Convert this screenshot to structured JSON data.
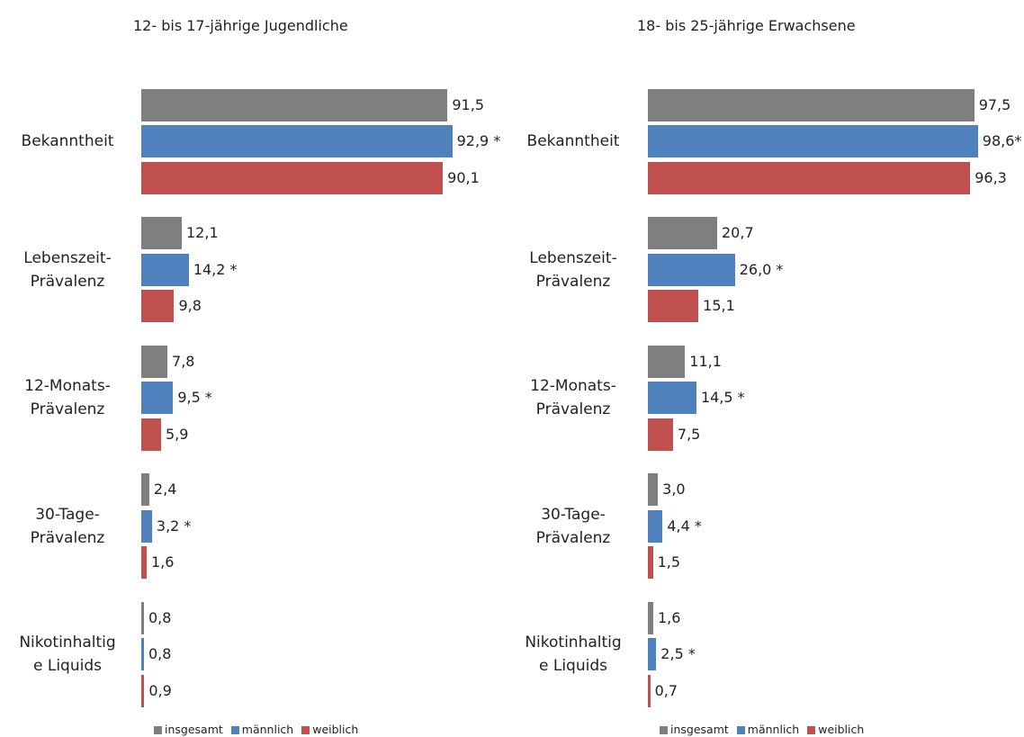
{
  "chart_data": [
    {
      "type": "bar",
      "orientation": "horizontal",
      "title": "12- bis 17-jährige Jugendliche",
      "categories": [
        "Bekanntheit",
        "Lebenszeit-\nPrävalenz",
        "12-Monats-\nPrävalenz",
        "30-Tage-\nPrävalenz",
        "Nikotinhaltig\ne Liquids"
      ],
      "series": [
        {
          "name": "insgesamt",
          "color": "#7f7f7f",
          "values": [
            91.5,
            12.1,
            7.8,
            2.4,
            0.8
          ],
          "value_labels": [
            "91,5",
            "12,1",
            "7,8",
            "2,4",
            "0,8"
          ]
        },
        {
          "name": "männlich",
          "color": "#4f81bd",
          "values": [
            92.9,
            14.2,
            9.5,
            3.2,
            0.8
          ],
          "value_labels": [
            "92,9 *",
            "14,2 *",
            "9,5 *",
            "3,2 *",
            "0,8"
          ]
        },
        {
          "name": "weiblich",
          "color": "#c0504d",
          "values": [
            90.1,
            9.8,
            5.9,
            1.6,
            0.9
          ],
          "value_labels": [
            "90,1",
            "9,8",
            "5,9",
            "1,6",
            "0,9"
          ]
        }
      ]
    },
    {
      "type": "bar",
      "orientation": "horizontal",
      "title": "18- bis 25-jährige Erwachsene",
      "categories": [
        "Bekanntheit",
        "Lebenszeit-\nPrävalenz",
        "12-Monats-\nPrävalenz",
        "30-Tage-\nPrävalenz",
        "Nikotinhaltig\ne Liquids"
      ],
      "series": [
        {
          "name": "insgesamt",
          "color": "#7f7f7f",
          "values": [
            97.5,
            20.7,
            11.1,
            3.0,
            1.6
          ],
          "value_labels": [
            "97,5",
            "20,7",
            "11,1",
            "3,0",
            "1,6"
          ]
        },
        {
          "name": "männlich",
          "color": "#4f81bd",
          "values": [
            98.6,
            26.0,
            14.5,
            4.4,
            2.5
          ],
          "value_labels": [
            "98,6*",
            "26,0 *",
            "14,5 *",
            "4,4 *",
            "2,5 *"
          ]
        },
        {
          "name": "weiblich",
          "color": "#c0504d",
          "values": [
            96.3,
            15.1,
            7.5,
            1.5,
            0.7
          ],
          "value_labels": [
            "96,3",
            "15,1",
            "7,5",
            "1,5",
            "0,7"
          ]
        }
      ]
    }
  ]
}
